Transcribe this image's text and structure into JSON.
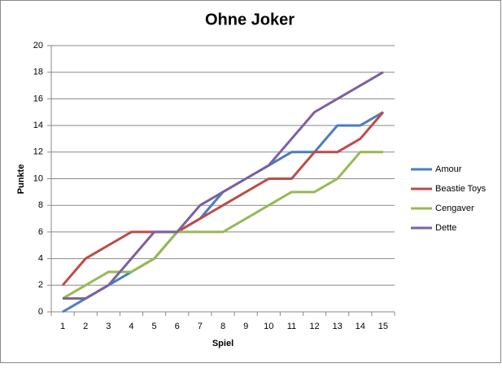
{
  "chart_data": {
    "type": "line",
    "title": "Ohne Joker",
    "x_label": "Spiel",
    "y_label": "Punkte",
    "categories": [
      "1",
      "2",
      "3",
      "4",
      "5",
      "6",
      "7",
      "8",
      "9",
      "10",
      "11",
      "12",
      "13",
      "14",
      "15"
    ],
    "series": [
      {
        "name": "Amour",
        "color": "#4a7ebb",
        "values": [
          0,
          1,
          2,
          3,
          4,
          6,
          7,
          9,
          10,
          11,
          12,
          12,
          14,
          14,
          15
        ]
      },
      {
        "name": "Beastie Toys",
        "color": "#be4b48",
        "values": [
          2,
          4,
          5,
          6,
          6,
          6,
          7,
          8,
          9,
          10,
          10,
          12,
          12,
          13,
          15
        ]
      },
      {
        "name": "Cengaver",
        "color": "#98b954",
        "values": [
          1,
          2,
          3,
          3,
          4,
          6,
          6,
          6,
          7,
          8,
          9,
          9,
          10,
          12,
          12
        ]
      },
      {
        "name": "Dette",
        "color": "#7d60a0",
        "values": [
          1,
          1,
          2,
          4,
          6,
          6,
          8,
          9,
          10,
          11,
          13,
          15,
          16,
          17,
          18
        ]
      }
    ],
    "ylim": [
      0,
      20
    ],
    "yticks": [
      0,
      2,
      4,
      6,
      8,
      10,
      12,
      14,
      16,
      18,
      20
    ],
    "grid": true,
    "legend": "right"
  }
}
